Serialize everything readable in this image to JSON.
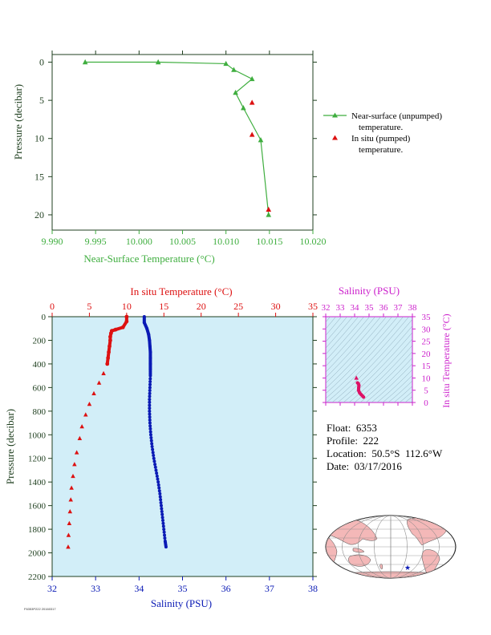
{
  "info": {
    "float": "Float:  6353",
    "profile": "Profile:  222",
    "location": "Location:  50.5°S  112.6°W",
    "date": "Date:  03/17/2016"
  },
  "footer": {
    "code": "F6353P222 20160317"
  },
  "colors": {
    "surface_line": "#3fae3f",
    "temperature": "#dd1111",
    "salinity": "#0a1ab5",
    "ts_panel": "#cc22cc",
    "plot_bg": "#d2eef8",
    "axis_dark": "#1f3f1f"
  },
  "chart_data": [
    {
      "type": "line",
      "xlabel": "Near-Surface Temperature (°C)",
      "ylabel": "Pressure (decibar)",
      "xlim": [
        9.99,
        10.02
      ],
      "ylim": [
        22,
        -1
      ],
      "x_ticks": [
        "9.990",
        "9.995",
        "10.000",
        "10.005",
        "10.010",
        "10.015",
        "10.020"
      ],
      "y_ticks": [
        "0",
        "5",
        "10",
        "15",
        "20"
      ],
      "series": [
        {
          "name": "Near-surface (unpumped) temperature.",
          "marker": "triangle",
          "points": [
            [
              9.9938,
              0.0
            ],
            [
              10.0022,
              0.0
            ],
            [
              10.01,
              0.2
            ],
            [
              10.0109,
              1.0
            ],
            [
              10.013,
              2.2
            ],
            [
              10.0111,
              4.0
            ],
            [
              10.012,
              6.0
            ],
            [
              10.014,
              10.2
            ],
            [
              10.0149,
              20.0
            ]
          ]
        },
        {
          "name": "In situ (pumped) temperature.",
          "marker": "triangle",
          "points": [
            [
              10.013,
              5.3
            ],
            [
              10.013,
              9.5
            ],
            [
              10.0149,
              19.3
            ]
          ]
        }
      ],
      "legend": [
        "Near-surface (unpumped)",
        "temperature.",
        "In situ (pumped)",
        "temperature."
      ]
    },
    {
      "type": "scatter",
      "title_top": "In situ Temperature (°C)",
      "xlabel": "Salinity (PSU)",
      "ylabel": "Pressure (decibar)",
      "temp_range": [
        0,
        35
      ],
      "sal_range": [
        32,
        38
      ],
      "pressure_range": [
        0,
        2200
      ],
      "temp_ticks": [
        "0",
        "5",
        "10",
        "15",
        "20",
        "25",
        "30",
        "35"
      ],
      "sal_ticks": [
        "32",
        "33",
        "34",
        "35",
        "36",
        "37",
        "38"
      ],
      "pressure_ticks": [
        "0",
        "200",
        "400",
        "600",
        "800",
        "1000",
        "1200",
        "1400",
        "1600",
        "1800",
        "2000",
        "2200"
      ],
      "temperature_profile": [
        [
          10.0,
          0
        ],
        [
          10.0,
          40
        ],
        [
          9.5,
          90
        ],
        [
          8.5,
          110
        ],
        [
          8.0,
          120
        ],
        [
          7.9,
          140
        ],
        [
          7.8,
          170
        ],
        [
          7.8,
          200
        ],
        [
          7.7,
          250
        ],
        [
          7.6,
          300
        ],
        [
          7.5,
          350
        ],
        [
          7.4,
          400
        ],
        [
          6.9,
          480
        ],
        [
          6.3,
          560
        ],
        [
          5.6,
          650
        ],
        [
          5.0,
          740
        ],
        [
          4.5,
          830
        ],
        [
          4.0,
          930
        ],
        [
          3.7,
          1030
        ],
        [
          3.3,
          1150
        ],
        [
          3.0,
          1250
        ],
        [
          2.8,
          1350
        ],
        [
          2.6,
          1450
        ],
        [
          2.5,
          1550
        ],
        [
          2.4,
          1650
        ],
        [
          2.3,
          1750
        ],
        [
          2.2,
          1850
        ],
        [
          2.15,
          1950
        ]
      ],
      "salinity_profile": [
        [
          34.12,
          0
        ],
        [
          34.12,
          50
        ],
        [
          34.18,
          100
        ],
        [
          34.22,
          150
        ],
        [
          34.24,
          200
        ],
        [
          34.25,
          250
        ],
        [
          34.26,
          300
        ],
        [
          34.26,
          350
        ],
        [
          34.26,
          400
        ],
        [
          34.26,
          450
        ],
        [
          34.26,
          500
        ],
        [
          34.25,
          600
        ],
        [
          34.24,
          700
        ],
        [
          34.24,
          800
        ],
        [
          34.25,
          900
        ],
        [
          34.27,
          1000
        ],
        [
          34.3,
          1100
        ],
        [
          34.34,
          1200
        ],
        [
          34.39,
          1300
        ],
        [
          34.44,
          1400
        ],
        [
          34.48,
          1500
        ],
        [
          34.51,
          1600
        ],
        [
          34.54,
          1700
        ],
        [
          34.57,
          1800
        ],
        [
          34.6,
          1900
        ],
        [
          34.62,
          1950
        ]
      ]
    },
    {
      "type": "scatter",
      "title": "Salinity (PSU)",
      "ylabel": "In situ Temperature (°C)",
      "xlim": [
        32,
        38
      ],
      "ylim": [
        0,
        35
      ],
      "x_ticks": [
        "32",
        "33",
        "34",
        "35",
        "36",
        "37",
        "38"
      ],
      "y_ticks": [
        "0",
        "5",
        "10",
        "15",
        "20",
        "25",
        "30",
        "35"
      ],
      "points": [
        [
          34.12,
          10.0
        ],
        [
          34.2,
          8.0
        ],
        [
          34.26,
          7.7
        ],
        [
          34.3,
          7.0
        ],
        [
          34.28,
          6.0
        ],
        [
          34.27,
          5.0
        ],
        [
          34.34,
          4.0
        ],
        [
          34.44,
          3.3
        ],
        [
          34.54,
          2.7
        ],
        [
          34.62,
          2.2
        ]
      ]
    }
  ]
}
